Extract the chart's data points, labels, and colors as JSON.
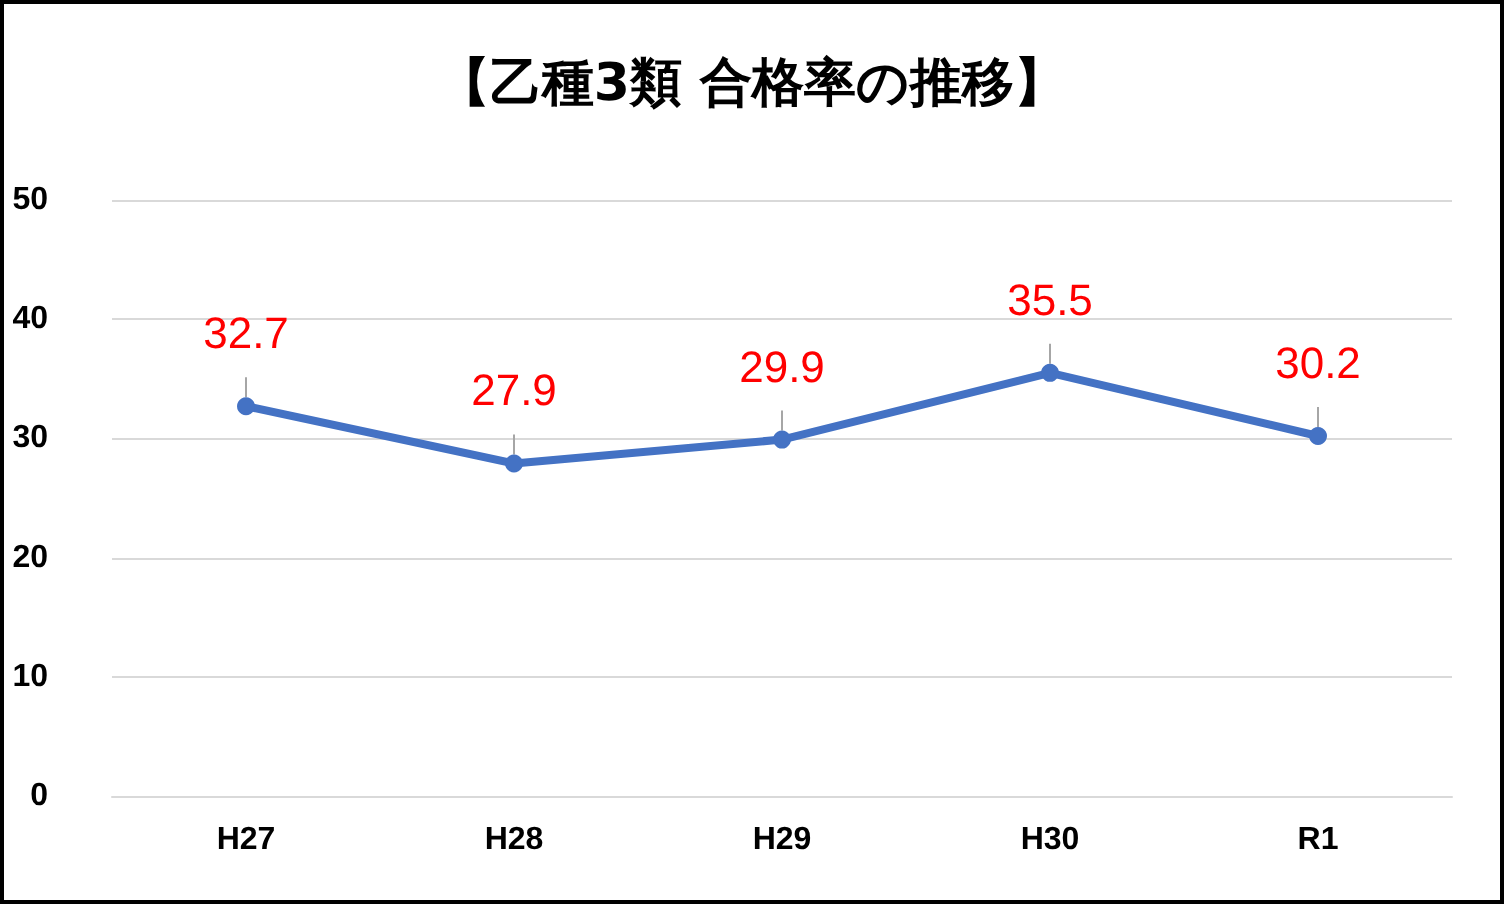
{
  "chart_data": {
    "type": "line",
    "title": "【乙種3類 合格率の推移】",
    "categories": [
      "H27",
      "H28",
      "H29",
      "H30",
      "R1"
    ],
    "values": [
      32.7,
      27.9,
      29.9,
      35.5,
      30.2
    ],
    "color": "#4472c4",
    "ylim": [
      0,
      50
    ],
    "yticks": [
      0,
      10,
      20,
      30,
      40,
      50
    ],
    "grid": "y",
    "marker": "circle",
    "data_labels": true
  }
}
